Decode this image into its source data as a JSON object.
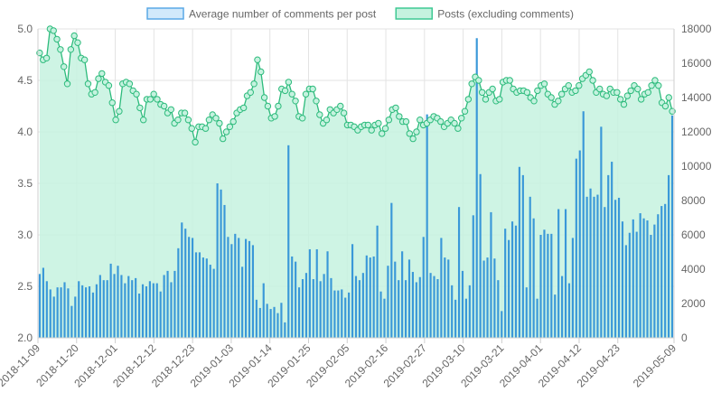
{
  "chart_data": {
    "type": "bar",
    "legend": {
      "placement": "top",
      "items": [
        {
          "label": "Average number of comments per post",
          "fill": "#d1e9fb",
          "stroke": "#5aa9e6"
        },
        {
          "label": "Posts (excluding comments)",
          "fill": "#c5f2df",
          "stroke": "#3ec994"
        }
      ]
    },
    "x_tick_labels": [
      "2018-11-09",
      "2018-11-20",
      "2018-12-01",
      "2018-12-12",
      "2018-12-23",
      "2019-01-03",
      "2019-01-14",
      "2019-01-25",
      "2019-02-05",
      "2019-02-16",
      "2019-02-27",
      "2019-03-10",
      "2019-03-21",
      "2019-04-01",
      "2019-04-12",
      "2019-04-23",
      "2019-05-09"
    ],
    "y_left": {
      "min": 2.0,
      "max": 5.0,
      "ticks": [
        "2.0",
        "2.5",
        "3.0",
        "3.5",
        "4.0",
        "4.5",
        "5.0"
      ]
    },
    "y_right": {
      "min": 0,
      "max": 18000,
      "ticks": [
        "0",
        "2000",
        "4000",
        "6000",
        "8000",
        "10000",
        "12000",
        "14000",
        "16000",
        "18000"
      ]
    },
    "grid": true,
    "x": {
      "start": "2018-11-09",
      "end": "2019-05-09"
    },
    "series": [
      {
        "name": "Average number of comments per post",
        "kind": "bar",
        "axis": "left",
        "color": "#3a98d8",
        "values": [
          2.62,
          2.68,
          2.55,
          2.47,
          2.4,
          2.49,
          2.49,
          2.54,
          2.48,
          2.31,
          2.4,
          2.55,
          2.51,
          2.49,
          2.5,
          2.44,
          2.52,
          2.61,
          2.56,
          2.56,
          2.72,
          2.62,
          2.7,
          2.61,
          2.53,
          2.6,
          2.56,
          2.58,
          2.43,
          2.52,
          2.5,
          2.55,
          2.53,
          2.53,
          2.45,
          2.61,
          2.65,
          2.54,
          2.65,
          2.87,
          3.12,
          3.06,
          2.98,
          2.97,
          2.83,
          2.83,
          2.78,
          2.77,
          2.71,
          2.67,
          3.5,
          3.44,
          3.29,
          2.98,
          2.91,
          3.01,
          2.97,
          2.69,
          2.96,
          2.94,
          2.9,
          2.37,
          2.29,
          2.53,
          2.33,
          2.28,
          2.3,
          2.24,
          2.34,
          2.15,
          3.87,
          2.79,
          2.74,
          2.49,
          2.57,
          2.63,
          2.86,
          2.57,
          2.86,
          2.55,
          2.62,
          2.84,
          2.58,
          2.46,
          2.46,
          2.47,
          2.39,
          2.44,
          2.91,
          2.6,
          2.56,
          2.63,
          2.8,
          2.78,
          2.79,
          3.09,
          2.45,
          2.38,
          2.7,
          3.31,
          2.74,
          2.56,
          2.84,
          2.56,
          2.76,
          2.64,
          2.54,
          2.59,
          2.98,
          4.17,
          2.63,
          2.6,
          2.57,
          2.97,
          2.78,
          2.76,
          2.51,
          2.37,
          3.27,
          2.65,
          2.38,
          2.51,
          3.19,
          4.91,
          3.59,
          2.75,
          2.78,
          3.22,
          2.77,
          2.56,
          2.26,
          3.06,
          2.95,
          3.13,
          3.09,
          3.66,
          3.58,
          2.49,
          3.37,
          3.16,
          2.38,
          3.0,
          3.05,
          3.01,
          3.01,
          2.42,
          3.25,
          2.6,
          3.25,
          2.53,
          2.97,
          3.74,
          3.82,
          4.2,
          3.37,
          3.45,
          3.37,
          3.39,
          4.05,
          3.27,
          3.58,
          3.71,
          3.34,
          3.36,
          3.13,
          2.9,
          3.02,
          3.15,
          3.03,
          3.21,
          3.16,
          3.14,
          3.0,
          3.1,
          3.2,
          3.28,
          3.3,
          3.58,
          4.16
        ]
      },
      {
        "name": "Posts (excluding comments)",
        "kind": "area",
        "axis": "right",
        "color": "#2dbb7c",
        "values": [
          16600,
          16200,
          16300,
          18000,
          17900,
          17400,
          16800,
          15800,
          14800,
          16800,
          17600,
          17200,
          16300,
          16200,
          14800,
          14200,
          14300,
          15100,
          15400,
          14900,
          14700,
          13700,
          12700,
          13200,
          14800,
          14900,
          14800,
          14400,
          14200,
          13400,
          12700,
          13900,
          13900,
          14200,
          13900,
          13600,
          13500,
          13100,
          13300,
          12500,
          12700,
          13100,
          13100,
          12700,
          12200,
          11400,
          12300,
          12300,
          12200,
          12700,
          13000,
          12800,
          12500,
          11600,
          12000,
          12300,
          12600,
          13100,
          13300,
          13400,
          14100,
          14300,
          14800,
          16200,
          15500,
          14000,
          13500,
          12800,
          12900,
          13500,
          14500,
          14400,
          14900,
          14200,
          13800,
          12900,
          12800,
          14200,
          14500,
          14500,
          13800,
          13000,
          12500,
          12700,
          13300,
          13100,
          13300,
          13500,
          13100,
          12400,
          12400,
          12300,
          12100,
          12300,
          12400,
          12400,
          12100,
          12400,
          12500,
          11900,
          12200,
          12700,
          13300,
          13400,
          12900,
          12600,
          12600,
          11900,
          11600,
          12000,
          12700,
          12400,
          12500,
          12700,
          12900,
          12800,
          12600,
          12300,
          12500,
          12700,
          12500,
          12200,
          12800,
          13200,
          13900,
          14800,
          15200,
          15000,
          14300,
          13900,
          14300,
          14500,
          13800,
          13900,
          14900,
          15000,
          15000,
          14500,
          14300,
          14400,
          14400,
          14300,
          14000,
          13800,
          14400,
          14700,
          14800,
          14200,
          14000,
          13600,
          13800,
          14200,
          14500,
          14700,
          14300,
          14400,
          14700,
          15100,
          15300,
          15500,
          15000,
          14300,
          14500,
          14200,
          14100,
          14500,
          14300,
          14300,
          13900,
          13600,
          14100,
          14400,
          14700,
          14500,
          13900,
          14200,
          14300,
          14700,
          15000,
          14700,
          13700,
          13500,
          14000,
          13200
        ]
      }
    ]
  }
}
